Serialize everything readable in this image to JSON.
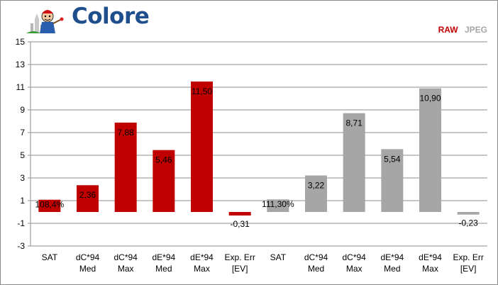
{
  "header": {
    "title": "Colore",
    "legend": [
      {
        "label": "RAW",
        "color": "#c00000"
      },
      {
        "label": "JPEG",
        "color": "#a6a6a6"
      }
    ],
    "logo_icon": "painter-mascot-icon"
  },
  "chart_data": {
    "type": "bar",
    "ylim": [
      -3,
      15
    ],
    "yticks": [
      -3,
      -1,
      1,
      3,
      5,
      7,
      9,
      11,
      13,
      15
    ],
    "grid": true,
    "legend_position": "top-right",
    "categories": [
      [
        "SAT"
      ],
      [
        "dC*94",
        "Med"
      ],
      [
        "dC*94",
        "Max"
      ],
      [
        "dE*94",
        "Med"
      ],
      [
        "dE*94",
        "Max"
      ],
      [
        "Exp. Err",
        "[EV]"
      ],
      [
        "SAT"
      ],
      [
        "dC*94",
        "Med"
      ],
      [
        "dC*94",
        "Max"
      ],
      [
        "dE*94",
        "Med"
      ],
      [
        "dE*94",
        "Max"
      ],
      [
        "Exp. Err",
        "[EV]"
      ]
    ],
    "series": [
      {
        "name": "RAW",
        "color": "#c00000",
        "values": [
          1.08,
          2.36,
          7.88,
          5.46,
          11.5,
          -0.31,
          null,
          null,
          null,
          null,
          null,
          null
        ],
        "labels": [
          "108,4%",
          "2,36",
          "7,88",
          "5,46",
          "11,50",
          "-0,31",
          "",
          "",
          "",
          "",
          "",
          ""
        ]
      },
      {
        "name": "JPEG",
        "color": "#a6a6a6",
        "values": [
          null,
          null,
          null,
          null,
          null,
          null,
          1.11,
          3.22,
          8.71,
          5.54,
          10.9,
          -0.23
        ],
        "labels": [
          "",
          "",
          "",
          "",
          "",
          "",
          "111,30%",
          "3,22",
          "8,71",
          "5,54",
          "10,90",
          "-0,23"
        ]
      }
    ]
  }
}
